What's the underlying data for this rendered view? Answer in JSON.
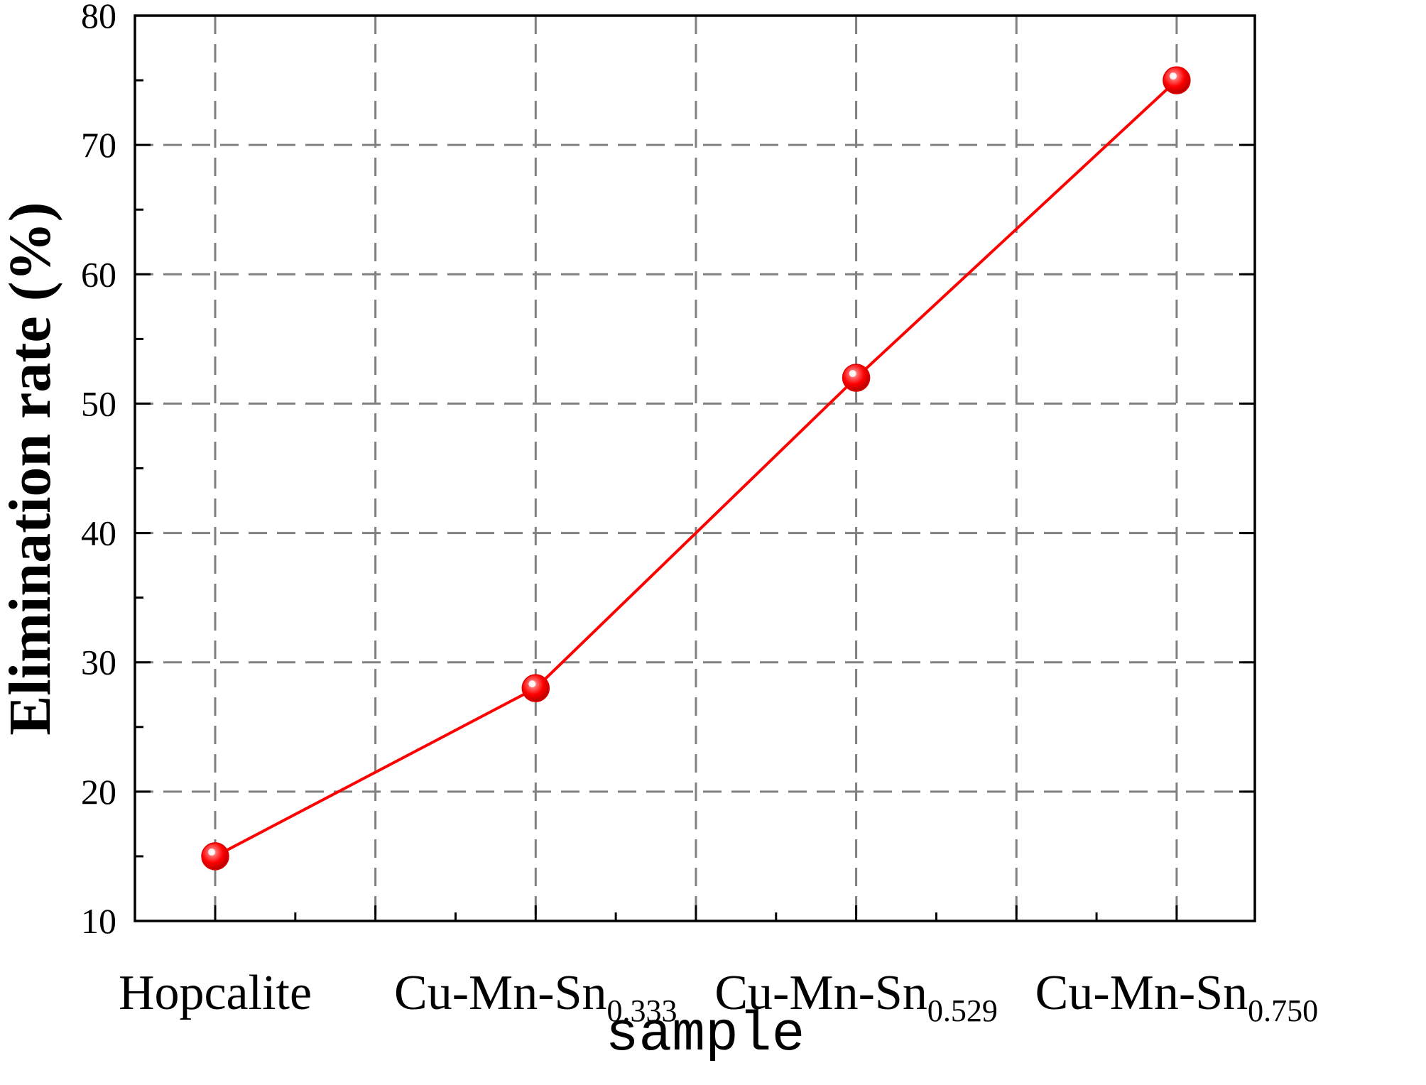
{
  "chart_data": {
    "type": "line",
    "categories": [
      {
        "base": "Hopcalite",
        "sub": ""
      },
      {
        "base": "Cu-Mn-Sn",
        "sub": "0.333"
      },
      {
        "base": "Cu-Mn-Sn",
        "sub": "0.529"
      },
      {
        "base": "Cu-Mn-Sn",
        "sub": "0.750"
      }
    ],
    "series": [
      {
        "values": [
          15,
          28,
          52,
          75
        ],
        "color": "#ff0000",
        "marker": "sphere"
      }
    ],
    "xlabel": "sample",
    "ylabel": "Elimination rate (%)",
    "ylim": [
      10,
      80
    ],
    "yticks": [
      10,
      20,
      30,
      40,
      50,
      60,
      70,
      80
    ],
    "grid": true,
    "grid_style": "dashed",
    "grid_color": "#808080"
  }
}
